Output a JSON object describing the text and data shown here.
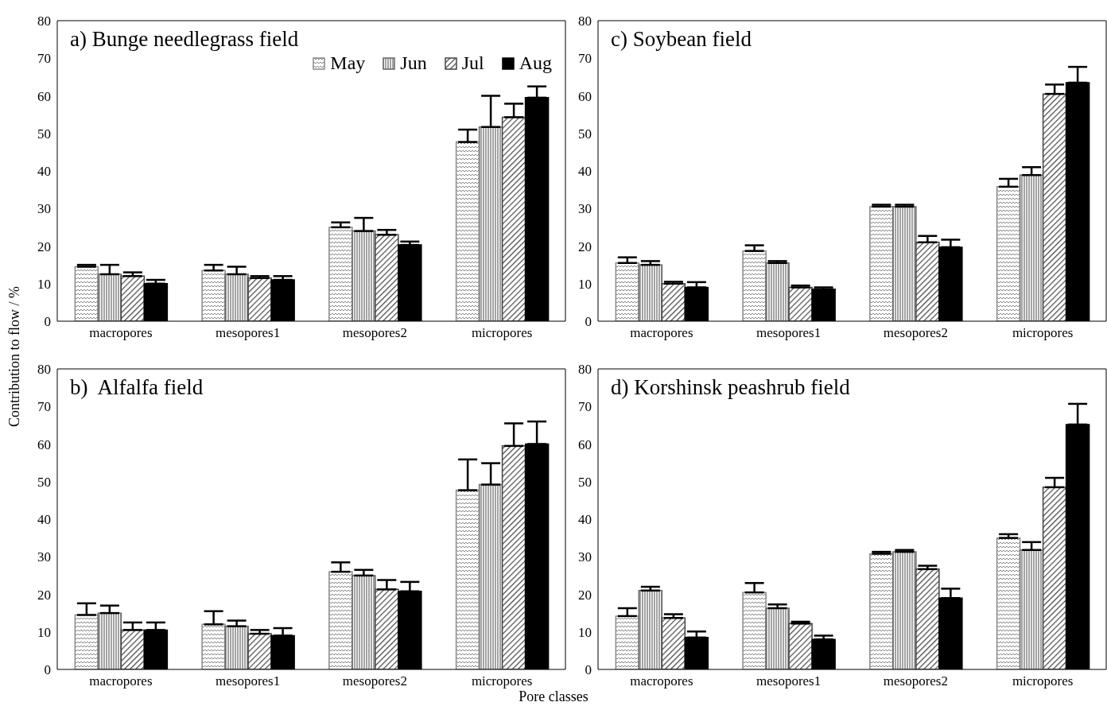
{
  "chart_data": [
    {
      "type": "bar",
      "title": "a) Bunge needlegrass field",
      "ylabel": "Contribution to flow / %",
      "categories": [
        "macropores",
        "mesopores1",
        "mesopores2",
        "micropores"
      ],
      "ylim": [
        0,
        80
      ],
      "yticks": [
        0,
        10,
        20,
        30,
        40,
        50,
        60,
        70,
        80
      ],
      "grid": false,
      "legend": "top right",
      "series": [
        {
          "name": "May",
          "color": "#888888",
          "values": [
            14.5,
            13.5,
            25,
            47.7
          ],
          "errors": [
            0.5,
            1.5,
            1.3,
            3.3
          ]
        },
        {
          "name": "Jun",
          "color": "#666666",
          "values": [
            12.5,
            12.5,
            24,
            51.7
          ],
          "errors": [
            2.5,
            2,
            3.5,
            8.3
          ]
        },
        {
          "name": "Jul",
          "color": "#444444",
          "values": [
            12,
            11.5,
            23,
            54.3
          ],
          "errors": [
            1,
            0.5,
            1.3,
            3.6
          ]
        },
        {
          "name": "Aug",
          "color": "#000000",
          "values": [
            10,
            11,
            20.3,
            59.5
          ],
          "errors": [
            1,
            1,
            0.9,
            3
          ]
        }
      ]
    },
    {
      "type": "bar",
      "title": "c) Soybean field",
      "categories": [
        "macropores",
        "mesopores1",
        "mesopores2",
        "micropores"
      ],
      "ylim": [
        0,
        80
      ],
      "yticks": [
        0,
        10,
        20,
        30,
        40,
        50,
        60,
        70,
        80
      ],
      "grid": false,
      "legend": false,
      "series": [
        {
          "color": "#888888",
          "values": [
            15.5,
            18.7,
            30.5,
            35.8
          ],
          "errors": [
            1.5,
            1.5,
            0.5,
            2.1
          ]
        },
        {
          "color": "#666666",
          "values": [
            15,
            15.5,
            30.5,
            38.9
          ],
          "errors": [
            1,
            0.5,
            0.5,
            2.1
          ]
        },
        {
          "color": "#444444",
          "values": [
            10,
            9,
            21,
            60.5
          ],
          "errors": [
            0.5,
            0.5,
            1.7,
            2.5
          ]
        },
        {
          "color": "#000000",
          "values": [
            9,
            8.5,
            19.7,
            63.5
          ],
          "errors": [
            1.4,
            0.5,
            2,
            4.2
          ]
        }
      ]
    },
    {
      "type": "bar",
      "title": "b)  Alfalfa field",
      "xlabel": "Pore classes",
      "categories": [
        "macropores",
        "mesopores1",
        "mesopores2",
        "micropores"
      ],
      "ylim": [
        0,
        80
      ],
      "yticks": [
        0,
        10,
        20,
        30,
        40,
        50,
        60,
        70,
        80
      ],
      "grid": false,
      "legend": false,
      "series": [
        {
          "color": "#888888",
          "values": [
            14.5,
            12,
            26,
            47.7
          ],
          "errors": [
            3.1,
            3.5,
            2.5,
            8.2
          ]
        },
        {
          "color": "#666666",
          "values": [
            15,
            11.5,
            25,
            49.2
          ],
          "errors": [
            2,
            1.5,
            1.5,
            5.7
          ]
        },
        {
          "color": "#444444",
          "values": [
            10.5,
            9.5,
            21.3,
            59.5
          ],
          "errors": [
            2,
            1,
            2.5,
            6
          ]
        },
        {
          "color": "#000000",
          "values": [
            10.5,
            9,
            20.8,
            60
          ],
          "errors": [
            2,
            2,
            2.5,
            6
          ]
        }
      ]
    },
    {
      "type": "bar",
      "title": "d) Korshinsk peashrub field",
      "categories": [
        "macropores",
        "mesopores1",
        "mesopores2",
        "micropores"
      ],
      "ylim": [
        0,
        80
      ],
      "yticks": [
        0,
        10,
        20,
        30,
        40,
        50,
        60,
        70,
        80
      ],
      "grid": false,
      "legend": false,
      "series": [
        {
          "color": "#888888",
          "values": [
            14.2,
            20.5,
            30.8,
            35
          ],
          "errors": [
            2.1,
            2.5,
            0.5,
            1
          ]
        },
        {
          "color": "#666666",
          "values": [
            21,
            16.3,
            31.3,
            31.8
          ],
          "errors": [
            1,
            1,
            0.5,
            2.1
          ]
        },
        {
          "color": "#444444",
          "values": [
            13.7,
            12.2,
            26.7,
            48.5
          ],
          "errors": [
            1,
            0.5,
            0.9,
            2.5
          ]
        },
        {
          "color": "#000000",
          "values": [
            8.5,
            8,
            19,
            65.2
          ],
          "errors": [
            1.6,
            1,
            2.5,
            5.5
          ]
        }
      ]
    }
  ]
}
